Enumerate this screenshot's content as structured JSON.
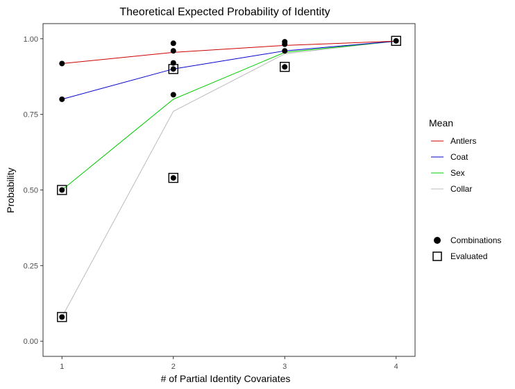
{
  "chart_data": {
    "type": "line",
    "title": "Theoretical Expected Probability of Identity",
    "xlabel": "# of Partial Identity Covariates",
    "ylabel": "Probability",
    "xlim": [
      0.83,
      4.17
    ],
    "ylim": [
      -0.05,
      1.05
    ],
    "x_ticks": [
      "1",
      "2",
      "3",
      "4"
    ],
    "y_ticks": [
      "0.00",
      "0.25",
      "0.50",
      "0.75",
      "1.00"
    ],
    "grid": false,
    "legend_position": "right",
    "series": [
      {
        "name": "Antlers",
        "color": "#cc0000",
        "x": [
          1,
          2,
          3,
          4
        ],
        "y": [
          0.918,
          0.955,
          0.978,
          0.992
        ]
      },
      {
        "name": "Coat",
        "color": "#0000cc",
        "x": [
          1,
          2,
          3,
          4
        ],
        "y": [
          0.8,
          0.9,
          0.96,
          0.992
        ]
      },
      {
        "name": "Sex",
        "color": "#00cc00",
        "x": [
          1,
          2,
          3,
          4
        ],
        "y": [
          0.5,
          0.8,
          0.955,
          0.992
        ]
      },
      {
        "name": "Collar",
        "color": "#bbbbbb",
        "x": [
          1,
          2,
          3,
          4
        ],
        "y": [
          0.08,
          0.76,
          0.95,
          0.992
        ]
      }
    ],
    "points": {
      "combinations": [
        [
          1,
          0.918
        ],
        [
          1,
          0.8
        ],
        [
          1,
          0.5
        ],
        [
          1,
          0.08
        ],
        [
          2,
          0.985
        ],
        [
          2,
          0.96
        ],
        [
          2,
          0.92
        ],
        [
          2,
          0.9
        ],
        [
          2,
          0.815
        ],
        [
          2,
          0.54
        ],
        [
          3,
          0.99
        ],
        [
          3,
          0.982
        ],
        [
          3,
          0.96
        ],
        [
          3,
          0.907
        ],
        [
          4,
          0.993
        ]
      ],
      "evaluated": [
        [
          1,
          0.5
        ],
        [
          1,
          0.08
        ],
        [
          2,
          0.9
        ],
        [
          2,
          0.54
        ],
        [
          3,
          0.907
        ],
        [
          4,
          0.993
        ]
      ]
    },
    "legend_mean": {
      "title": "Mean",
      "items": [
        "Antlers",
        "Coat",
        "Sex",
        "Collar"
      ]
    },
    "legend_shape": {
      "items": [
        "Combinations",
        "Evaluated"
      ]
    }
  }
}
